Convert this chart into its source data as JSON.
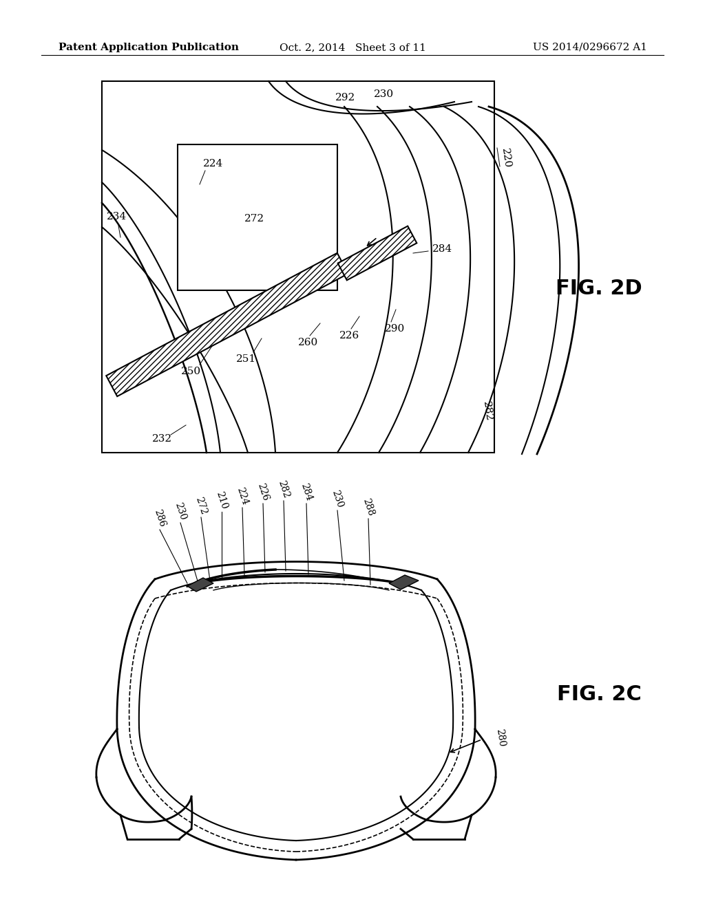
{
  "bg_color": "#ffffff",
  "line_color": "#000000",
  "header_left": "Patent Application Publication",
  "header_mid": "Oct. 2, 2014   Sheet 3 of 11",
  "header_right": "US 2014/0296672 A1",
  "fig2d_label": "FIG. 2D",
  "fig2c_label": "FIG. 2C",
  "header_fontsize": 11,
  "fig_label_fontsize": 22
}
